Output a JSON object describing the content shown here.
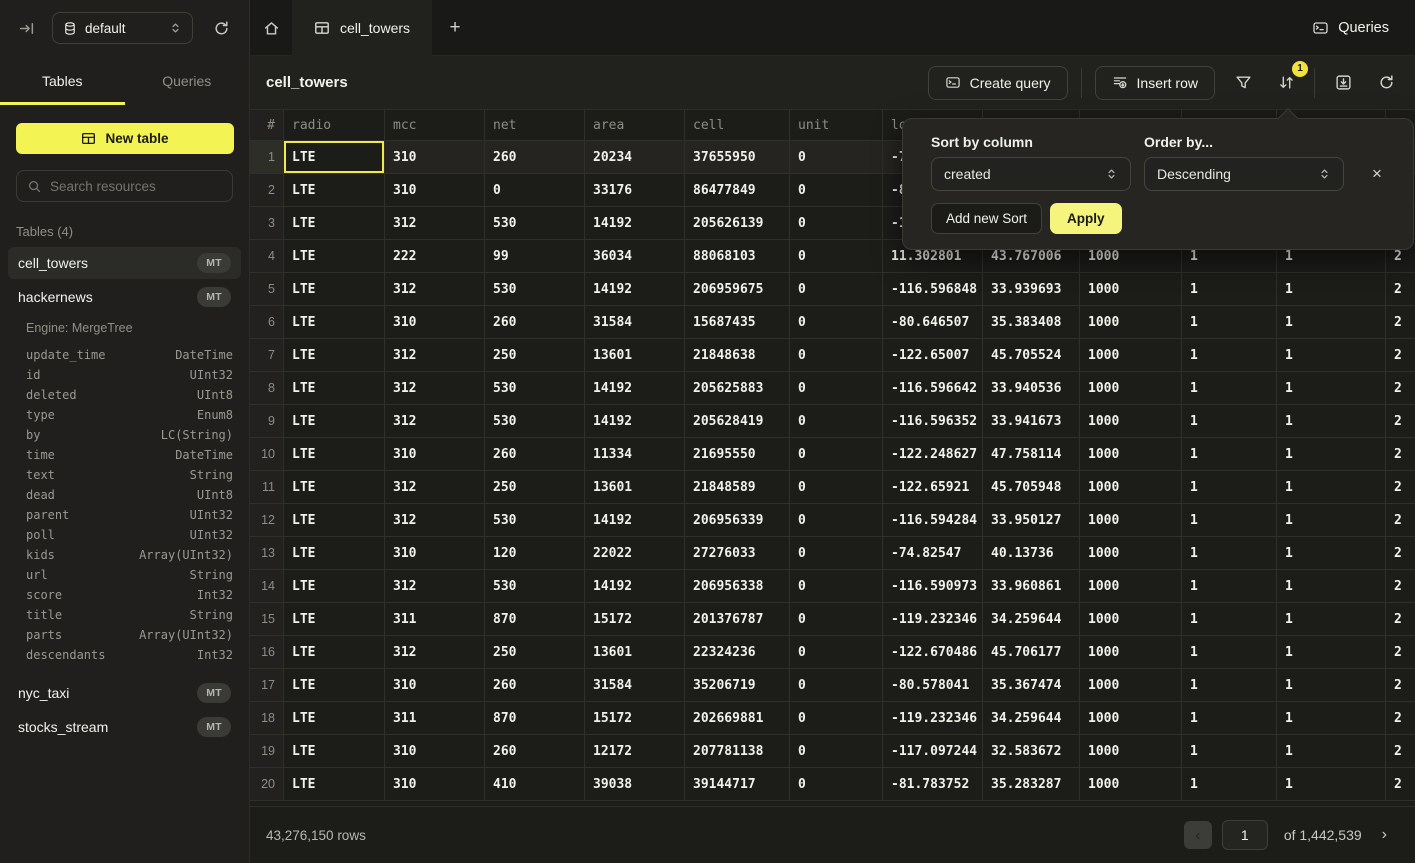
{
  "topbar": {
    "database": "default",
    "queries_label": "Queries"
  },
  "icons": {
    "plus": "+",
    "close": "×",
    "prev": "‹",
    "next": "›"
  },
  "sidebar": {
    "tabs": {
      "tables": "Tables",
      "queries": "Queries"
    },
    "new_table_label": "New table",
    "search_placeholder": "Search resources",
    "section_label": "Tables (4)",
    "tables": [
      {
        "name": "cell_towers",
        "badge": "MT",
        "selected": true
      },
      {
        "name": "hackernews",
        "badge": "MT",
        "engine": "Engine: MergeTree",
        "schema": [
          {
            "field": "update_time",
            "type": "DateTime"
          },
          {
            "field": "id",
            "type": "UInt32"
          },
          {
            "field": "deleted",
            "type": "UInt8"
          },
          {
            "field": "type",
            "type": "Enum8"
          },
          {
            "field": "by",
            "type": "LC(String)"
          },
          {
            "field": "time",
            "type": "DateTime"
          },
          {
            "field": "text",
            "type": "String"
          },
          {
            "field": "dead",
            "type": "UInt8"
          },
          {
            "field": "parent",
            "type": "UInt32"
          },
          {
            "field": "poll",
            "type": "UInt32"
          },
          {
            "field": "kids",
            "type": "Array(UInt32)"
          },
          {
            "field": "url",
            "type": "String"
          },
          {
            "field": "score",
            "type": "Int32"
          },
          {
            "field": "title",
            "type": "String"
          },
          {
            "field": "parts",
            "type": "Array(UInt32)"
          },
          {
            "field": "descendants",
            "type": "Int32"
          }
        ]
      },
      {
        "name": "nyc_taxi",
        "badge": "MT"
      },
      {
        "name": "stocks_stream",
        "badge": "MT"
      }
    ]
  },
  "tabbar": {
    "tab_label": "cell_towers"
  },
  "toolbar": {
    "title": "cell_towers",
    "create_query_label": "Create query",
    "insert_row_label": "Insert row",
    "sort_badge": "1"
  },
  "sort_popup": {
    "sort_by_label": "Sort by column",
    "order_by_label": "Order by...",
    "column_value": "created",
    "order_value": "Descending",
    "add_sort_label": "Add new Sort",
    "apply_label": "Apply"
  },
  "table": {
    "columns": [
      "#",
      "radio",
      "mcc",
      "net",
      "area",
      "cell",
      "unit",
      "lon",
      "",
      "",
      "",
      "",
      ""
    ],
    "selected_cell": {
      "row": 1,
      "column": "radio"
    },
    "rows": [
      [
        "LTE",
        "310",
        "260",
        "20234",
        "37655950",
        "0",
        "-7",
        "",
        "",
        "",
        "",
        ""
      ],
      [
        "LTE",
        "310",
        "0",
        "33176",
        "86477849",
        "0",
        "-8",
        "",
        "",
        "",
        "",
        ""
      ],
      [
        "LTE",
        "312",
        "530",
        "14192",
        "205626139",
        "0",
        "-1",
        "",
        "",
        "",
        "",
        ""
      ],
      [
        "LTE",
        "222",
        "99",
        "36034",
        "88068103",
        "0",
        "11.302801",
        "43.767006",
        "1000",
        "1",
        "1",
        "2"
      ],
      [
        "LTE",
        "312",
        "530",
        "14192",
        "206959675",
        "0",
        "-116.596848",
        "33.939693",
        "1000",
        "1",
        "1",
        "2"
      ],
      [
        "LTE",
        "310",
        "260",
        "31584",
        "15687435",
        "0",
        "-80.646507",
        "35.383408",
        "1000",
        "1",
        "1",
        "2"
      ],
      [
        "LTE",
        "312",
        "250",
        "13601",
        "21848638",
        "0",
        "-122.65007",
        "45.705524",
        "1000",
        "1",
        "1",
        "2"
      ],
      [
        "LTE",
        "312",
        "530",
        "14192",
        "205625883",
        "0",
        "-116.596642",
        "33.940536",
        "1000",
        "1",
        "1",
        "2"
      ],
      [
        "LTE",
        "312",
        "530",
        "14192",
        "205628419",
        "0",
        "-116.596352",
        "33.941673",
        "1000",
        "1",
        "1",
        "2"
      ],
      [
        "LTE",
        "310",
        "260",
        "11334",
        "21695550",
        "0",
        "-122.248627",
        "47.758114",
        "1000",
        "1",
        "1",
        "2"
      ],
      [
        "LTE",
        "312",
        "250",
        "13601",
        "21848589",
        "0",
        "-122.65921",
        "45.705948",
        "1000",
        "1",
        "1",
        "2"
      ],
      [
        "LTE",
        "312",
        "530",
        "14192",
        "206956339",
        "0",
        "-116.594284",
        "33.950127",
        "1000",
        "1",
        "1",
        "2"
      ],
      [
        "LTE",
        "310",
        "120",
        "22022",
        "27276033",
        "0",
        "-74.82547",
        "40.13736",
        "1000",
        "1",
        "1",
        "2"
      ],
      [
        "LTE",
        "312",
        "530",
        "14192",
        "206956338",
        "0",
        "-116.590973",
        "33.960861",
        "1000",
        "1",
        "1",
        "2"
      ],
      [
        "LTE",
        "311",
        "870",
        "15172",
        "201376787",
        "0",
        "-119.232346",
        "34.259644",
        "1000",
        "1",
        "1",
        "2"
      ],
      [
        "LTE",
        "312",
        "250",
        "13601",
        "22324236",
        "0",
        "-122.670486",
        "45.706177",
        "1000",
        "1",
        "1",
        "2"
      ],
      [
        "LTE",
        "310",
        "260",
        "31584",
        "35206719",
        "0",
        "-80.578041",
        "35.367474",
        "1000",
        "1",
        "1",
        "2"
      ],
      [
        "LTE",
        "311",
        "870",
        "15172",
        "202669881",
        "0",
        "-119.232346",
        "34.259644",
        "1000",
        "1",
        "1",
        "2"
      ],
      [
        "LTE",
        "310",
        "260",
        "12172",
        "207781138",
        "0",
        "-117.097244",
        "32.583672",
        "1000",
        "1",
        "1",
        "2"
      ],
      [
        "LTE",
        "310",
        "410",
        "39038",
        "39144717",
        "0",
        "-81.783752",
        "35.283287",
        "1000",
        "1",
        "1",
        "2"
      ]
    ]
  },
  "footer": {
    "row_count": "43,276,150 rows",
    "page_value": "1",
    "page_total": "of 1,442,539"
  }
}
